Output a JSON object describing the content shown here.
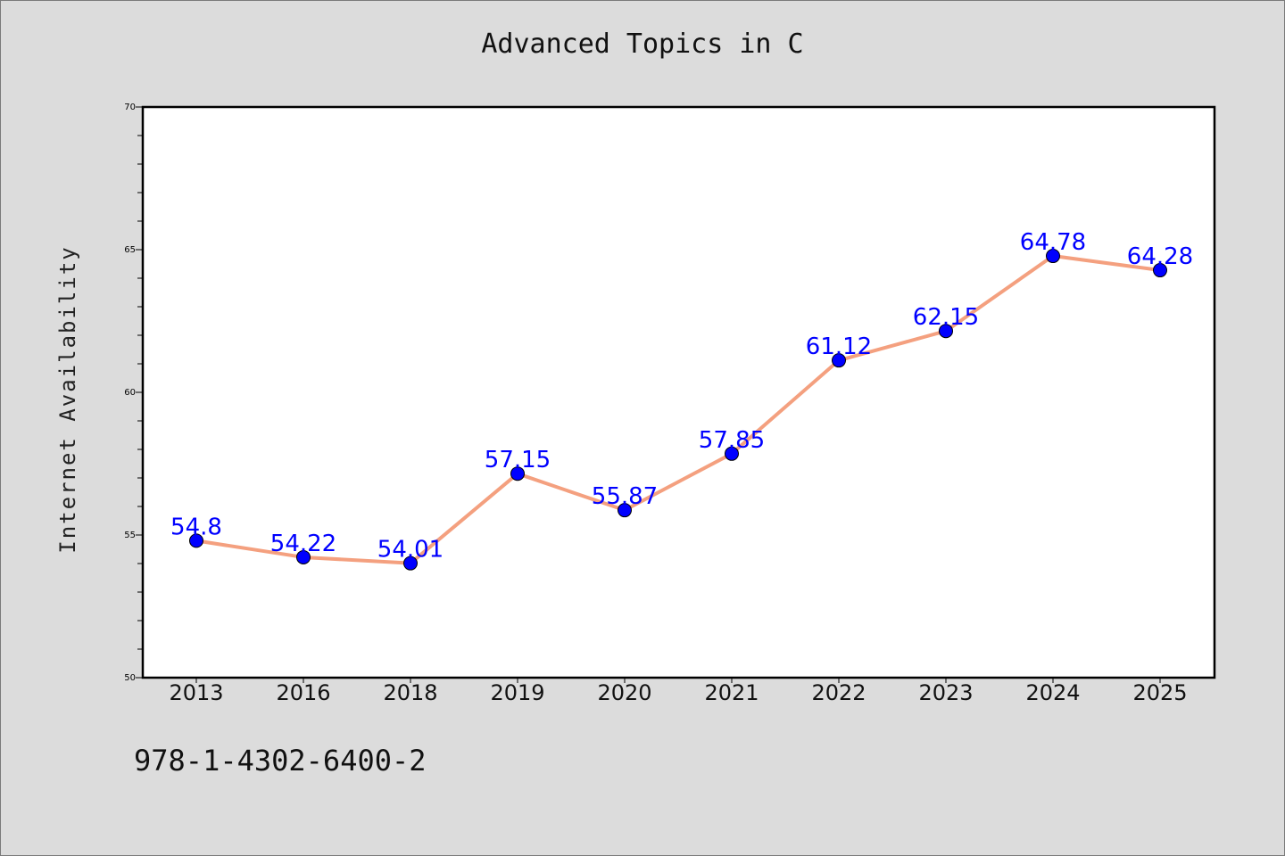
{
  "chart_data": {
    "type": "line",
    "title": "Advanced Topics in C",
    "xlabel": "",
    "ylabel": "Internet Availability",
    "categories": [
      "2013",
      "2016",
      "2018",
      "2019",
      "2020",
      "2021",
      "2022",
      "2023",
      "2024",
      "2025"
    ],
    "series": [
      {
        "values": [
          54.8,
          54.22,
          54.01,
          57.15,
          55.87,
          57.85,
          61.12,
          62.15,
          64.78,
          64.28
        ],
        "data_labels": [
          "54.8",
          "54.22",
          "54.01",
          "57.15",
          "55.87",
          "57.85",
          "61.12",
          "62.15",
          "64.78",
          "64.28"
        ],
        "line_color": "#f4a07f",
        "marker_color": "#0000ff"
      }
    ],
    "ylim": [
      50,
      70
    ],
    "yticks": [
      "50",
      "55",
      "60",
      "65",
      "70"
    ],
    "grid": false,
    "legend": "none"
  },
  "footer_text": "978-1-4302-6400-2",
  "colors": {
    "background": "#dcdcdc",
    "plot_background": "#ffffff",
    "label_color": "#0000ff"
  }
}
